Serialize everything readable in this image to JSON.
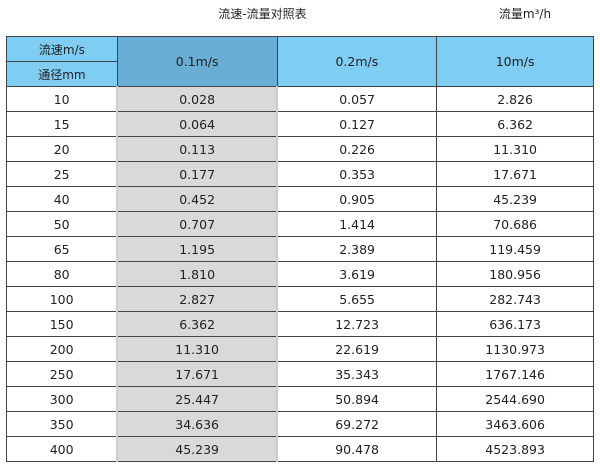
{
  "title": "流速-流量对照表",
  "unit": "流量m³/h",
  "header": {
    "speed_label": "流速m/s",
    "diameter_label": "通径mm",
    "cols": [
      "0.1m/s",
      "0.2m/s",
      "10m/s"
    ]
  },
  "colors": {
    "header": "#7fcdf3",
    "highlight_header": "#6aaed6",
    "highlight_column": "#d9d9d9"
  },
  "rows": [
    [
      "10",
      "0.028",
      "0.057",
      "2.826"
    ],
    [
      "15",
      "0.064",
      "0.127",
      "6.362"
    ],
    [
      "20",
      "0.113",
      "0.226",
      "11.310"
    ],
    [
      "25",
      "0.177",
      "0.353",
      "17.671"
    ],
    [
      "40",
      "0.452",
      "0.905",
      "45.239"
    ],
    [
      "50",
      "0.707",
      "1.414",
      "70.686"
    ],
    [
      "65",
      "1.195",
      "2.389",
      "119.459"
    ],
    [
      "80",
      "1.810",
      "3.619",
      "180.956"
    ],
    [
      "100",
      "2.827",
      "5.655",
      "282.743"
    ],
    [
      "150",
      "6.362",
      "12.723",
      "636.173"
    ],
    [
      "200",
      "11.310",
      "22.619",
      "1130.973"
    ],
    [
      "250",
      "17.671",
      "35.343",
      "1767.146"
    ],
    [
      "300",
      "25.447",
      "50.894",
      "2544.690"
    ],
    [
      "350",
      "34.636",
      "69.272",
      "3463.606"
    ],
    [
      "400",
      "45.239",
      "90.478",
      "4523.893"
    ]
  ]
}
